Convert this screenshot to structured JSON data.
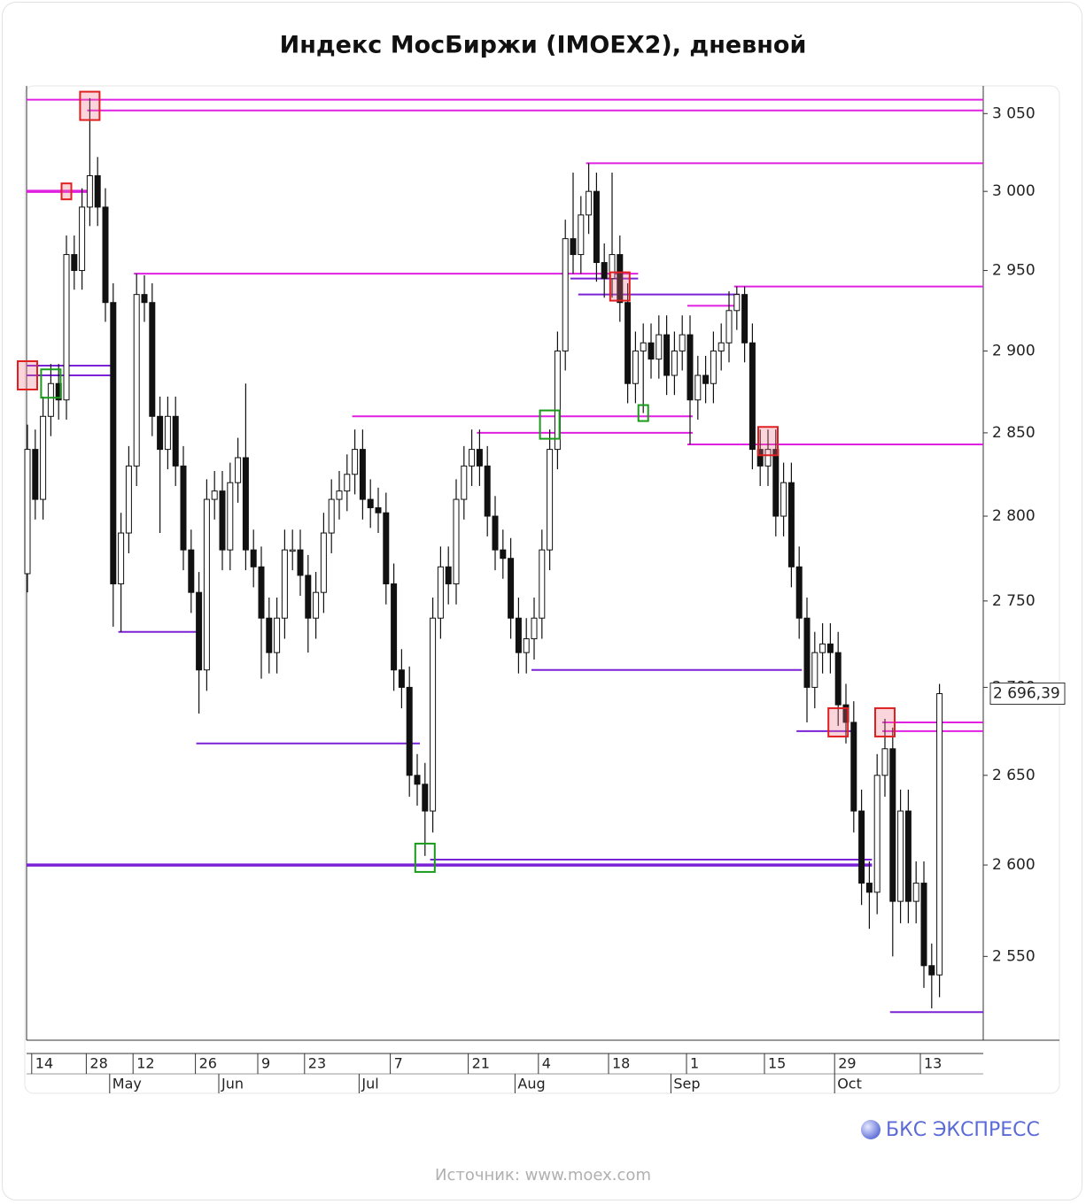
{
  "chart_data": {
    "type": "candlestick",
    "title": "Индекс МосБиржи (IMOEX2), дневной",
    "log_scale": true,
    "ylim": [
      2505,
      3068
    ],
    "yticks": [
      {
        "value": 2550,
        "label": "2 550"
      },
      {
        "value": 2600,
        "label": "2 600"
      },
      {
        "value": 2650,
        "label": "2 650"
      },
      {
        "value": 2700,
        "label": "2 700"
      },
      {
        "value": 2750,
        "label": "2 750"
      },
      {
        "value": 2800,
        "label": "2 800"
      },
      {
        "value": 2850,
        "label": "2 850"
      },
      {
        "value": 2900,
        "label": "2 900"
      },
      {
        "value": 2950,
        "label": "2 950"
      },
      {
        "value": 3000,
        "label": "3 000"
      },
      {
        "value": 3050,
        "label": "3 050"
      }
    ],
    "categories": [
      null,
      "14",
      null,
      null,
      null,
      null,
      null,
      null,
      "28",
      null,
      null,
      null,
      null,
      null,
      "12",
      null,
      null,
      null,
      null,
      null,
      null,
      null,
      "26",
      null,
      null,
      null,
      null,
      null,
      null,
      null,
      "9",
      null,
      null,
      null,
      null,
      null,
      "23",
      null,
      null,
      null,
      null,
      null,
      null,
      null,
      null,
      null,
      null,
      "7",
      null,
      null,
      null,
      null,
      null,
      null,
      null,
      null,
      null,
      "21",
      null,
      null,
      null,
      null,
      null,
      null,
      null,
      null,
      "4",
      null,
      null,
      null,
      null,
      null,
      null,
      null,
      null,
      "18",
      null,
      null,
      null,
      null,
      null,
      null,
      null,
      null,
      null,
      "1",
      null,
      null,
      null,
      null,
      null,
      null,
      null,
      null,
      null,
      "15",
      null,
      null,
      null,
      null,
      null,
      null,
      null,
      null,
      "29",
      null,
      null,
      null,
      null,
      null,
      null,
      null,
      null,
      null,
      null,
      "13",
      null,
      null
    ],
    "months": [
      null,
      null,
      null,
      null,
      null,
      null,
      null,
      null,
      null,
      null,
      null,
      "May",
      null,
      null,
      null,
      null,
      null,
      null,
      null,
      null,
      null,
      null,
      null,
      null,
      null,
      "Jun",
      null,
      null,
      null,
      null,
      null,
      null,
      null,
      null,
      null,
      null,
      null,
      null,
      null,
      null,
      null,
      null,
      null,
      "Jul",
      null,
      null,
      null,
      null,
      null,
      null,
      null,
      null,
      null,
      null,
      null,
      null,
      null,
      null,
      null,
      null,
      null,
      null,
      null,
      "Aug",
      null,
      null,
      null,
      null,
      null,
      null,
      null,
      null,
      null,
      null,
      null,
      null,
      null,
      null,
      null,
      null,
      null,
      null,
      null,
      "Sep",
      null,
      null,
      null,
      null,
      null,
      null,
      null,
      null,
      null,
      null,
      null,
      null,
      null,
      null,
      null,
      null,
      null,
      null,
      null,
      null,
      "Oct",
      null,
      null,
      null,
      null,
      null,
      null,
      null,
      null,
      null,
      null,
      null
    ],
    "open": [
      2766,
      2840,
      2810,
      2860,
      2880,
      2870,
      2960,
      2950,
      2990,
      3010,
      2990,
      2930,
      2760,
      2790,
      2830,
      2935,
      2930,
      2860,
      2840,
      2860,
      2830,
      2780,
      2755,
      2710,
      2810,
      2815,
      2780,
      2820,
      2835,
      2780,
      2770,
      2740,
      2720,
      2740,
      2780,
      2780,
      2765,
      2740,
      2755,
      2790,
      2810,
      2815,
      2825,
      2840,
      2810,
      2805,
      2802,
      2760,
      2710,
      2700,
      2650,
      2645,
      2630,
      2740,
      2770,
      2760,
      2810,
      2830,
      2840,
      2830,
      2800,
      2780,
      2775,
      2740,
      2720,
      2728,
      2740,
      2780,
      2840,
      2900,
      2970,
      2960,
      2985,
      3000,
      2955,
      2945,
      2960,
      2930,
      2880,
      2900,
      2905,
      2895,
      2910,
      2885,
      2900,
      2910,
      2870,
      2885,
      2880,
      2900,
      2905,
      2925,
      2935,
      2905,
      2840,
      2830,
      2840,
      2800,
      2820,
      2770,
      2740,
      2700,
      2720,
      2725,
      2720,
      2690,
      2680,
      2630,
      2590,
      2585,
      2650,
      2665,
      2580,
      2630,
      2580,
      2590,
      2545,
      2540
    ],
    "high": [
      2855,
      2852,
      2872,
      2892,
      2892,
      2972,
      2972,
      3002,
      3060,
      3022,
      3002,
      2942,
      2802,
      2842,
      2948,
      2947,
      2942,
      2872,
      2872,
      2872,
      2842,
      2792,
      2767,
      2822,
      2827,
      2827,
      2832,
      2847,
      2880,
      2792,
      2782,
      2752,
      2752,
      2792,
      2792,
      2792,
      2777,
      2767,
      2802,
      2822,
      2827,
      2837,
      2852,
      2852,
      2822,
      2817,
      2814,
      2772,
      2722,
      2712,
      2662,
      2657,
      2752,
      2782,
      2782,
      2822,
      2842,
      2852,
      2852,
      2842,
      2812,
      2792,
      2787,
      2752,
      2740,
      2752,
      2792,
      2852,
      2912,
      2982,
      3012,
      2997,
      3018,
      3012,
      2967,
      3012,
      2972,
      2942,
      2912,
      2917,
      2917,
      2922,
      2922,
      2912,
      2922,
      2922,
      2897,
      2897,
      2912,
      2917,
      2937,
      2940,
      2940,
      2917,
      2852,
      2852,
      2852,
      2832,
      2832,
      2782,
      2752,
      2732,
      2737,
      2737,
      2732,
      2702,
      2692,
      2642,
      2602,
      2662,
      2682,
      2677,
      2642,
      2642,
      2602,
      2602,
      2557,
      2702
    ],
    "low": [
      2755,
      2798,
      2798,
      2848,
      2858,
      2858,
      2938,
      2938,
      2978,
      2978,
      2918,
      2735,
      2732,
      2778,
      2818,
      2918,
      2848,
      2790,
      2828,
      2818,
      2768,
      2743,
      2685,
      2698,
      2798,
      2768,
      2768,
      2808,
      2768,
      2758,
      2705,
      2708,
      2708,
      2728,
      2768,
      2753,
      2720,
      2728,
      2743,
      2778,
      2798,
      2803,
      2813,
      2798,
      2793,
      2790,
      2748,
      2698,
      2688,
      2638,
      2633,
      2605,
      2618,
      2728,
      2748,
      2748,
      2798,
      2818,
      2818,
      2788,
      2768,
      2763,
      2728,
      2708,
      2708,
      2716,
      2728,
      2768,
      2828,
      2888,
      2948,
      2948,
      2973,
      2943,
      2933,
      2933,
      2918,
      2868,
      2868,
      2862,
      2883,
      2883,
      2873,
      2873,
      2888,
      2843,
      2858,
      2868,
      2868,
      2888,
      2893,
      2913,
      2893,
      2828,
      2818,
      2818,
      2788,
      2788,
      2758,
      2728,
      2680,
      2688,
      2708,
      2708,
      2678,
      2668,
      2618,
      2578,
      2565,
      2573,
      2638,
      2550,
      2568,
      2568,
      2568,
      2533,
      2522,
      2528
    ],
    "close": [
      2840,
      2810,
      2860,
      2880,
      2870,
      2960,
      2950,
      2990,
      3010,
      2990,
      2930,
      2760,
      2790,
      2830,
      2935,
      2930,
      2860,
      2840,
      2860,
      2830,
      2780,
      2755,
      2710,
      2810,
      2815,
      2780,
      2820,
      2835,
      2780,
      2770,
      2740,
      2720,
      2740,
      2780,
      2780,
      2765,
      2740,
      2755,
      2790,
      2810,
      2815,
      2825,
      2840,
      2810,
      2805,
      2802,
      2760,
      2710,
      2700,
      2650,
      2645,
      2630,
      2740,
      2770,
      2760,
      2810,
      2830,
      2840,
      2830,
      2800,
      2780,
      2775,
      2740,
      2720,
      2728,
      2740,
      2780,
      2840,
      2900,
      2970,
      2960,
      2985,
      3000,
      2955,
      2945,
      2960,
      2930,
      2880,
      2900,
      2905,
      2895,
      2910,
      2885,
      2900,
      2910,
      2870,
      2885,
      2880,
      2900,
      2905,
      2925,
      2935,
      2905,
      2840,
      2830,
      2840,
      2800,
      2820,
      2770,
      2740,
      2700,
      2720,
      2725,
      2720,
      2690,
      2680,
      2630,
      2590,
      2585,
      2650,
      2665,
      2580,
      2630,
      2580,
      2590,
      2545,
      2540,
      2696.39
    ],
    "last_label": "2 696,39",
    "levels": [
      {
        "value": 3059,
        "from": 0,
        "color": "#e020e0"
      },
      {
        "value": 3052,
        "from": 8,
        "color": "#e020e0"
      },
      {
        "value": 3000,
        "from": 0,
        "to": 8,
        "color": "#e020e0",
        "thick": true
      },
      {
        "value": 3018,
        "from": 72,
        "color": "#e020e0"
      },
      {
        "value": 2948,
        "from": 14,
        "to": 78,
        "color": "#e020e0"
      },
      {
        "value": 2940,
        "from": 91,
        "color": "#e020e0"
      },
      {
        "value": 2928,
        "from": 85,
        "to": 91,
        "color": "#e020e0"
      },
      {
        "value": 2860,
        "from": 42,
        "to": 85,
        "color": "#e020e0"
      },
      {
        "value": 2850,
        "from": 58,
        "to": 85,
        "color": "#e020e0"
      },
      {
        "value": 2843,
        "from": 85,
        "color": "#e020e0"
      },
      {
        "value": 2680,
        "from": 110,
        "color": "#e020e0"
      },
      {
        "value": 2675,
        "from": 110,
        "color": "#e020e0"
      },
      {
        "value": 2891,
        "from": 0,
        "to": 11,
        "color": "#7b22d6"
      },
      {
        "value": 2885,
        "from": 0,
        "to": 11,
        "color": "#7b22d6"
      },
      {
        "value": 2945,
        "from": 70,
        "to": 78,
        "color": "#7b22d6"
      },
      {
        "value": 2935,
        "from": 71,
        "to": 91,
        "color": "#7b22d6"
      },
      {
        "value": 2732,
        "from": 12,
        "to": 22,
        "color": "#7b22d6"
      },
      {
        "value": 2668,
        "from": 22,
        "to": 50,
        "color": "#7b22d6"
      },
      {
        "value": 2710,
        "from": 65,
        "to": 99,
        "color": "#7b22d6"
      },
      {
        "value": 2675,
        "from": 99,
        "to": 106,
        "color": "#7b22d6"
      },
      {
        "value": 2603,
        "from": 52,
        "to": 108,
        "color": "#7b22d6"
      },
      {
        "value": 2600,
        "from": 0,
        "to": 108,
        "color": "#7b22d6",
        "thick": true
      },
      {
        "value": 2520,
        "from": 111,
        "color": "#7b22d6"
      }
    ],
    "boxes": [
      {
        "index": 8,
        "value": 3055,
        "color": "#e02020"
      },
      {
        "index": 5,
        "value": 3000,
        "color": "#e02020"
      },
      {
        "index": 0,
        "value": 2885,
        "color": "#e02020"
      },
      {
        "index": 3,
        "value": 2880,
        "color": "#1a9a1a"
      },
      {
        "index": 51,
        "value": 2604,
        "color": "#1a9a1a"
      },
      {
        "index": 67,
        "value": 2855,
        "color": "#1a9a1a"
      },
      {
        "index": 79,
        "value": 2862,
        "color": "#1a9a1a"
      },
      {
        "index": 76,
        "value": 2940,
        "color": "#e02020"
      },
      {
        "index": 95,
        "value": 2845,
        "color": "#e02020"
      },
      {
        "index": 104,
        "value": 2680,
        "color": "#e02020"
      },
      {
        "index": 110,
        "value": 2680,
        "color": "#e02020"
      }
    ]
  },
  "brand": "БКС ЭКСПРЕСС",
  "source": "Источник: www.moex.com"
}
